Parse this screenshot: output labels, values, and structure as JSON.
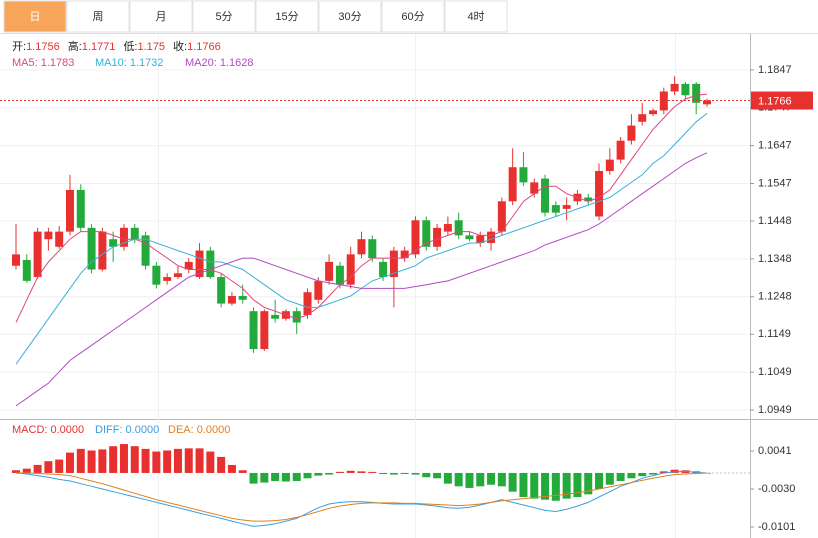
{
  "tabs": [
    "日",
    "周",
    "月",
    "5分",
    "15分",
    "30分",
    "60分",
    "4时"
  ],
  "active_tab": 0,
  "chart_data": [
    {
      "type": "candlestick",
      "info": [
        {
          "label": "开:",
          "value": 1.1756
        },
        {
          "label": "高:",
          "value": 1.1771
        },
        {
          "label": "低:",
          "value": 1.175
        },
        {
          "label": "收:",
          "value": 1.1766
        }
      ],
      "up_color": "#e8312f",
      "down_color": "#22aa3a",
      "ylim": [
        1.0928,
        1.1939
      ],
      "yticks": [
        1.1847,
        1.1747,
        1.1647,
        1.1547,
        1.1448,
        1.1348,
        1.1248,
        1.1149,
        1.1049,
        1.0949
      ],
      "grid": true,
      "last_price": 1.1766,
      "open": [
        1.133,
        1.1345,
        1.13,
        1.14,
        1.138,
        1.142,
        1.153,
        1.143,
        1.132,
        1.14,
        1.138,
        1.143,
        1.141,
        1.133,
        1.129,
        1.13,
        1.132,
        1.13,
        1.137,
        1.13,
        1.123,
        1.125,
        1.121,
        1.111,
        1.12,
        1.119,
        1.121,
        1.12,
        1.124,
        1.129,
        1.133,
        1.128,
        1.136,
        1.14,
        1.134,
        1.13,
        1.135,
        1.136,
        1.145,
        1.138,
        1.142,
        1.145,
        1.141,
        1.139,
        1.139,
        1.142,
        1.15,
        1.159,
        1.152,
        1.156,
        1.149,
        1.148,
        1.15,
        1.151,
        1.146,
        1.158,
        1.161,
        1.166,
        1.171,
        1.173,
        1.174,
        1.179,
        1.181,
        1.181,
        1.1756
      ],
      "close": [
        1.136,
        1.129,
        1.142,
        1.142,
        1.142,
        1.153,
        1.143,
        1.132,
        1.142,
        1.138,
        1.143,
        1.14,
        1.133,
        1.128,
        1.13,
        1.131,
        1.134,
        1.137,
        1.13,
        1.123,
        1.125,
        1.124,
        1.111,
        1.121,
        1.119,
        1.121,
        1.118,
        1.126,
        1.129,
        1.134,
        1.128,
        1.136,
        1.14,
        1.135,
        1.13,
        1.137,
        1.137,
        1.145,
        1.138,
        1.143,
        1.144,
        1.141,
        1.14,
        1.141,
        1.142,
        1.15,
        1.159,
        1.155,
        1.155,
        1.147,
        1.147,
        1.149,
        1.152,
        1.15,
        1.158,
        1.161,
        1.166,
        1.17,
        1.173,
        1.174,
        1.179,
        1.181,
        1.178,
        1.176,
        1.1766
      ],
      "high": [
        1.144,
        1.136,
        1.143,
        1.143,
        1.1435,
        1.157,
        1.1545,
        1.144,
        1.143,
        1.142,
        1.144,
        1.144,
        1.142,
        1.134,
        1.131,
        1.133,
        1.135,
        1.139,
        1.138,
        1.131,
        1.126,
        1.128,
        1.122,
        1.1215,
        1.124,
        1.1215,
        1.122,
        1.127,
        1.13,
        1.136,
        1.134,
        1.138,
        1.142,
        1.141,
        1.135,
        1.138,
        1.138,
        1.146,
        1.146,
        1.144,
        1.146,
        1.147,
        1.142,
        1.142,
        1.143,
        1.151,
        1.164,
        1.163,
        1.156,
        1.157,
        1.15,
        1.151,
        1.153,
        1.152,
        1.16,
        1.164,
        1.167,
        1.173,
        1.176,
        1.1745,
        1.18,
        1.183,
        1.1815,
        1.1815,
        1.1771
      ],
      "low": [
        1.132,
        1.1285,
        1.1295,
        1.137,
        1.1375,
        1.141,
        1.142,
        1.131,
        1.1315,
        1.134,
        1.137,
        1.139,
        1.132,
        1.127,
        1.128,
        1.1295,
        1.131,
        1.1295,
        1.1295,
        1.122,
        1.1225,
        1.123,
        1.11,
        1.1105,
        1.118,
        1.1185,
        1.115,
        1.119,
        1.123,
        1.128,
        1.127,
        1.127,
        1.135,
        1.134,
        1.129,
        1.122,
        1.134,
        1.135,
        1.137,
        1.137,
        1.141,
        1.14,
        1.1395,
        1.138,
        1.137,
        1.141,
        1.149,
        1.154,
        1.151,
        1.146,
        1.146,
        1.145,
        1.149,
        1.149,
        1.145,
        1.157,
        1.16,
        1.165,
        1.17,
        1.1725,
        1.173,
        1.178,
        1.177,
        1.173,
        1.175
      ],
      "series": [
        {
          "name": "MA5: 1.1783",
          "color": "#e0457b",
          "values": [
            1.118,
            1.124,
            1.13,
            1.134,
            1.137,
            1.14,
            1.142,
            1.142,
            1.142,
            1.141,
            1.14,
            1.14,
            1.139,
            1.137,
            1.135,
            1.133,
            1.132,
            1.132,
            1.132,
            1.131,
            1.129,
            1.127,
            1.124,
            1.122,
            1.121,
            1.12,
            1.119,
            1.12,
            1.122,
            1.125,
            1.128,
            1.13,
            1.133,
            1.135,
            1.135,
            1.135,
            1.135,
            1.137,
            1.139,
            1.14,
            1.141,
            1.142,
            1.142,
            1.141,
            1.141,
            1.142,
            1.146,
            1.15,
            1.152,
            1.154,
            1.154,
            1.152,
            1.151,
            1.15,
            1.151,
            1.153,
            1.157,
            1.161,
            1.165,
            1.169,
            1.172,
            1.175,
            1.177,
            1.178,
            1.1783
          ]
        },
        {
          "name": "MA10: 1.1732",
          "color": "#3ab0d8",
          "values": [
            1.107,
            1.111,
            1.115,
            1.119,
            1.123,
            1.127,
            1.131,
            1.134,
            1.136,
            1.138,
            1.139,
            1.14,
            1.14,
            1.139,
            1.138,
            1.137,
            1.136,
            1.135,
            1.134,
            1.134,
            1.133,
            1.132,
            1.13,
            1.128,
            1.126,
            1.124,
            1.123,
            1.122,
            1.122,
            1.123,
            1.124,
            1.125,
            1.127,
            1.129,
            1.13,
            1.131,
            1.132,
            1.133,
            1.135,
            1.136,
            1.137,
            1.138,
            1.139,
            1.139,
            1.14,
            1.141,
            1.142,
            1.143,
            1.144,
            1.145,
            1.146,
            1.147,
            1.148,
            1.149,
            1.15,
            1.151,
            1.153,
            1.155,
            1.157,
            1.16,
            1.162,
            1.165,
            1.168,
            1.171,
            1.1732
          ]
        },
        {
          "name": "MA20: 1.1628",
          "color": "#b04cc0",
          "values": [
            1.096,
            1.098,
            1.1,
            1.102,
            1.105,
            1.108,
            1.11,
            1.112,
            1.114,
            1.116,
            1.118,
            1.12,
            1.122,
            1.124,
            1.126,
            1.128,
            1.13,
            1.131,
            1.132,
            1.133,
            1.134,
            1.135,
            1.135,
            1.134,
            1.133,
            1.132,
            1.131,
            1.13,
            1.129,
            1.1285,
            1.128,
            1.1275,
            1.127,
            1.127,
            1.127,
            1.127,
            1.127,
            1.1275,
            1.128,
            1.1285,
            1.129,
            1.13,
            1.131,
            1.132,
            1.133,
            1.134,
            1.135,
            1.136,
            1.137,
            1.1385,
            1.1395,
            1.1405,
            1.1415,
            1.1425,
            1.144,
            1.146,
            1.148,
            1.15,
            1.152,
            1.154,
            1.156,
            1.158,
            1.16,
            1.1615,
            1.1628
          ]
        }
      ]
    },
    {
      "type": "macd",
      "ylim": [
        -0.0116,
        0.0099
      ],
      "yticks": [
        0.0041,
        {
          "value": -0.003,
          "label": "-0.0030"
        },
        -0.0101
      ],
      "histogram": {
        "name": "MACD: 0.0000",
        "color": "#e8312f",
        "neg_color": "#22aa3a",
        "values": [
          0.0005,
          0.0008,
          0.0015,
          0.0022,
          0.0025,
          0.0038,
          0.0045,
          0.0042,
          0.0044,
          0.005,
          0.0054,
          0.005,
          0.0045,
          0.004,
          0.0042,
          0.0045,
          0.0046,
          0.0046,
          0.004,
          0.003,
          0.0015,
          0.0005,
          -0.002,
          -0.0018,
          -0.0015,
          -0.0016,
          -0.0015,
          -0.001,
          -0.0005,
          -0.0003,
          0.0002,
          0.0004,
          0.0003,
          0.0002,
          -0.0002,
          -0.0003,
          -0.0002,
          -0.0003,
          -0.0008,
          -0.001,
          -0.002,
          -0.0025,
          -0.0028,
          -0.0025,
          -0.0022,
          -0.0025,
          -0.0035,
          -0.0045,
          -0.0048,
          -0.005,
          -0.0052,
          -0.0048,
          -0.0045,
          -0.004,
          -0.003,
          -0.0022,
          -0.0015,
          -0.001,
          -0.0006,
          -0.0003,
          0.0003,
          0.0006,
          0.0005,
          0.0003,
          0.0
        ]
      },
      "series": [
        {
          "name": "DIFF: 0.0000",
          "color": "#3a9ee0",
          "values": [
            0.0,
            -0.0002,
            -0.0005,
            -0.0008,
            -0.0012,
            -0.0015,
            -0.002,
            -0.0025,
            -0.003,
            -0.0035,
            -0.004,
            -0.0045,
            -0.005,
            -0.0055,
            -0.006,
            -0.0065,
            -0.007,
            -0.0075,
            -0.008,
            -0.0085,
            -0.009,
            -0.0095,
            -0.01,
            -0.0098,
            -0.0095,
            -0.009,
            -0.0085,
            -0.0075,
            -0.0065,
            -0.0058,
            -0.0055,
            -0.0054,
            -0.0054,
            -0.0055,
            -0.0057,
            -0.0058,
            -0.0058,
            -0.0058,
            -0.006,
            -0.0062,
            -0.0065,
            -0.0066,
            -0.0064,
            -0.006,
            -0.0055,
            -0.005,
            -0.0055,
            -0.006,
            -0.0065,
            -0.007,
            -0.0072,
            -0.0068,
            -0.0062,
            -0.0055,
            -0.0045,
            -0.0035,
            -0.0025,
            -0.0018,
            -0.001,
            -0.0005,
            0.0,
            0.0002,
            0.0003,
            0.0001,
            0.0
          ]
        },
        {
          "name": "DEA: 0.0000",
          "color": "#e0801e",
          "values": [
            0.0,
            0.0,
            -0.0001,
            -0.0002,
            -0.0003,
            -0.0005,
            -0.001,
            -0.0015,
            -0.002,
            -0.0026,
            -0.0032,
            -0.0038,
            -0.0044,
            -0.005,
            -0.0055,
            -0.006,
            -0.0065,
            -0.007,
            -0.0075,
            -0.008,
            -0.0085,
            -0.0088,
            -0.009,
            -0.009,
            -0.0089,
            -0.0087,
            -0.0083,
            -0.0078,
            -0.0072,
            -0.0066,
            -0.0062,
            -0.0059,
            -0.0057,
            -0.0056,
            -0.0056,
            -0.0056,
            -0.0057,
            -0.0057,
            -0.0058,
            -0.0059,
            -0.006,
            -0.0061,
            -0.006,
            -0.0058,
            -0.0055,
            -0.0052,
            -0.005,
            -0.0048,
            -0.0046,
            -0.0044,
            -0.0042,
            -0.004,
            -0.0037,
            -0.0034,
            -0.003,
            -0.0026,
            -0.0022,
            -0.0018,
            -0.0014,
            -0.001,
            -0.0006,
            -0.0003,
            -0.0002,
            -0.0001,
            0.0
          ]
        }
      ]
    }
  ]
}
